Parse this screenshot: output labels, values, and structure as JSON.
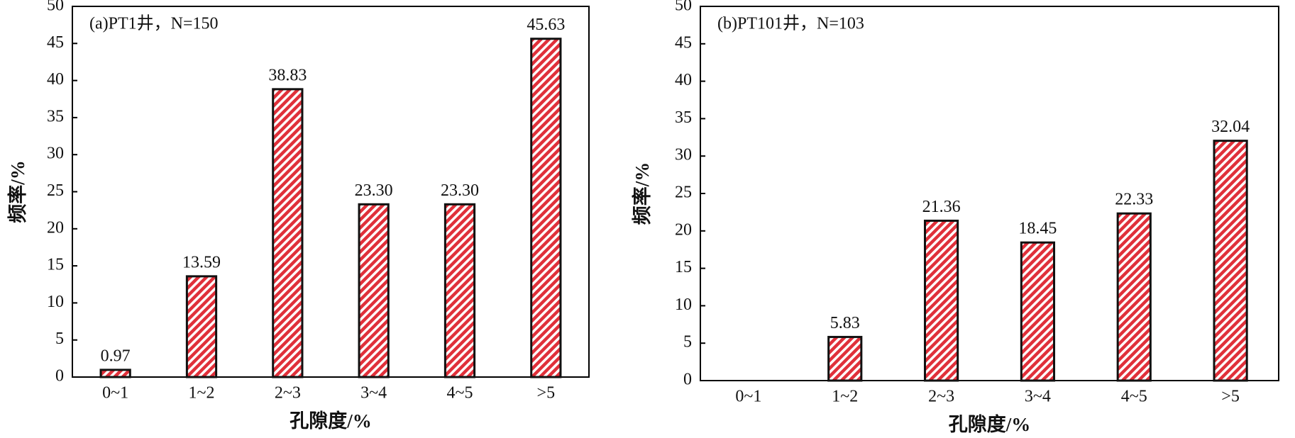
{
  "chart_data": [
    {
      "type": "bar",
      "annotation": "(a)PT1井，N=150",
      "x_label": "孔隙度/%",
      "y_label": "频率/%",
      "categories": [
        "0~1",
        "1~2",
        "2~3",
        "3~4",
        "4~5",
        ">5"
      ],
      "values": [
        0.97,
        13.59,
        38.83,
        23.3,
        23.3,
        45.63
      ],
      "value_labels": [
        "0.97",
        "13.59",
        "38.83",
        "23.30",
        "23.30",
        "45.63"
      ],
      "color": "#e0303a",
      "ylim": [
        0,
        50
      ],
      "yticks": [
        0,
        5,
        10,
        15,
        20,
        25,
        30,
        35,
        40,
        45,
        50
      ],
      "grid": false
    },
    {
      "type": "bar",
      "annotation": "(b)PT101井，N=103",
      "x_label": "孔隙度/%",
      "y_label": "频率/%",
      "categories": [
        "0~1",
        "1~2",
        "2~3",
        "3~4",
        "4~5",
        ">5"
      ],
      "values": [
        null,
        5.83,
        21.36,
        18.45,
        22.33,
        32.04
      ],
      "value_labels": [
        null,
        "5.83",
        "21.36",
        "18.45",
        "22.33",
        "32.04"
      ],
      "color": "#e0303a",
      "ylim": [
        0,
        50
      ],
      "yticks": [
        0,
        5,
        10,
        15,
        20,
        25,
        30,
        35,
        40,
        45,
        50
      ],
      "grid": false
    }
  ]
}
